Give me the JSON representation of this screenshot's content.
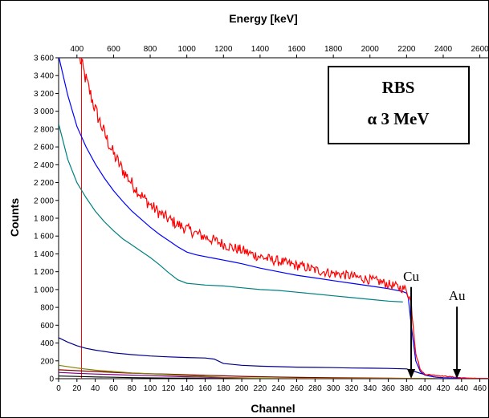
{
  "chart_data": {
    "type": "line",
    "title": "",
    "xlabel": "Channel",
    "ylabel": "Counts",
    "x2label": "Energy [keV]",
    "xlim": [
      0,
      470
    ],
    "ylim": [
      0,
      3600
    ],
    "x2lim": [
      300,
      2650
    ],
    "x_ticks": [
      0,
      20,
      40,
      60,
      80,
      100,
      120,
      140,
      160,
      180,
      200,
      220,
      240,
      260,
      280,
      300,
      320,
      340,
      360,
      380,
      400,
      420,
      440,
      460
    ],
    "y_ticks": [
      0,
      200,
      400,
      600,
      800,
      1000,
      1200,
      1400,
      1600,
      1800,
      2000,
      2200,
      2400,
      2600,
      2800,
      3000,
      3200,
      3400,
      3600
    ],
    "y_tick_labels": [
      "0",
      "200",
      "400",
      "600",
      "800",
      "1 000",
      "1 200",
      "1 400",
      "1 600",
      "1 800",
      "2 000",
      "2 200",
      "2 400",
      "2 600",
      "2 800",
      "3 000",
      "3 200",
      "3 400",
      "3 600"
    ],
    "x2_ticks": [
      400,
      600,
      800,
      1000,
      1200,
      1400,
      1600,
      1800,
      2000,
      2200,
      2400,
      2600
    ],
    "x2_tick_labels": [
      "400",
      "600",
      "800",
      "1000",
      "1200",
      "1400",
      "1600",
      "1800",
      "2000",
      "2200",
      "2400",
      "2600"
    ],
    "grid": false,
    "legend": "none",
    "box_text": [
      "RBS",
      "α 3 MeV"
    ],
    "annotations": [
      {
        "text": "Cu",
        "x": 385,
        "y": 1100,
        "arrow_to": [
          385,
          0
        ]
      },
      {
        "text": "Au",
        "x": 435,
        "y": 880,
        "arrow_to": [
          435,
          0
        ]
      }
    ],
    "marker_line": {
      "x": 25,
      "color": "#ff0000"
    },
    "series": [
      {
        "color": "#ff0000",
        "noisy": true,
        "x": [
          23,
          30,
          40,
          50,
          60,
          70,
          80,
          90,
          100,
          110,
          120,
          130,
          140,
          150,
          160,
          170,
          180,
          190,
          200,
          210,
          220,
          230,
          240,
          250,
          260,
          270,
          280,
          290,
          300,
          310,
          320,
          330,
          340,
          350,
          360,
          370,
          380,
          385,
          390,
          395,
          400,
          410,
          420,
          430,
          440,
          450,
          470
        ],
        "y": [
          3600,
          3350,
          3020,
          2750,
          2520,
          2340,
          2190,
          2060,
          1950,
          1860,
          1790,
          1730,
          1680,
          1630,
          1590,
          1550,
          1510,
          1470,
          1440,
          1400,
          1370,
          1340,
          1320,
          1290,
          1270,
          1250,
          1220,
          1200,
          1180,
          1170,
          1150,
          1130,
          1110,
          1090,
          1060,
          1030,
          1000,
          850,
          300,
          100,
          50,
          40,
          30,
          20,
          10,
          5,
          0
        ]
      },
      {
        "color": "#0000ff",
        "x": [
          0,
          10,
          20,
          30,
          40,
          50,
          60,
          70,
          80,
          90,
          100,
          110,
          120,
          130,
          140,
          150,
          160,
          170,
          180,
          190,
          200,
          220,
          240,
          260,
          280,
          300,
          320,
          340,
          360,
          375,
          380,
          382,
          385,
          390,
          395,
          400,
          410,
          420,
          440,
          470
        ],
        "y": [
          3620,
          3180,
          2830,
          2600,
          2410,
          2250,
          2110,
          1990,
          1880,
          1790,
          1700,
          1620,
          1550,
          1480,
          1420,
          1390,
          1370,
          1350,
          1330,
          1310,
          1290,
          1240,
          1200,
          1160,
          1130,
          1100,
          1070,
          1040,
          1010,
          980,
          960,
          900,
          600,
          200,
          80,
          40,
          20,
          10,
          5,
          0
        ]
      },
      {
        "color": "#008080",
        "x": [
          0,
          10,
          20,
          30,
          40,
          50,
          60,
          70,
          80,
          90,
          100,
          110,
          120,
          130,
          140,
          150,
          160,
          180,
          200,
          220,
          240,
          260,
          280,
          300,
          320,
          340,
          360,
          376
        ],
        "y": [
          2860,
          2460,
          2200,
          2030,
          1880,
          1760,
          1660,
          1570,
          1500,
          1430,
          1360,
          1280,
          1190,
          1110,
          1070,
          1060,
          1050,
          1040,
          1020,
          1000,
          990,
          970,
          950,
          930,
          910,
          890,
          870,
          860
        ]
      },
      {
        "color": "#00008b",
        "x": [
          0,
          10,
          20,
          30,
          40,
          60,
          80,
          100,
          120,
          140,
          160,
          170,
          180,
          200,
          220,
          240,
          260,
          280,
          300,
          320,
          340,
          360,
          380,
          395,
          410,
          420,
          440,
          470
        ],
        "y": [
          460,
          410,
          370,
          340,
          320,
          290,
          270,
          255,
          245,
          238,
          232,
          220,
          170,
          150,
          140,
          135,
          130,
          127,
          124,
          120,
          118,
          115,
          110,
          60,
          20,
          10,
          5,
          0
        ]
      },
      {
        "color": "#808000",
        "x": [
          0,
          20,
          40,
          60,
          80,
          100,
          120,
          140,
          160,
          180,
          200,
          220,
          240,
          260,
          280,
          300,
          470
        ],
        "y": [
          150,
          120,
          95,
          80,
          65,
          55,
          45,
          35,
          25,
          15,
          10,
          5,
          3,
          2,
          1,
          0,
          0
        ]
      },
      {
        "color": "#800000",
        "x": [
          0,
          20,
          40,
          60,
          80,
          100,
          120,
          140,
          160,
          180,
          200,
          240,
          300,
          360,
          380,
          420,
          470
        ],
        "y": [
          100,
          90,
          80,
          70,
          62,
          56,
          50,
          44,
          38,
          32,
          26,
          18,
          10,
          6,
          4,
          2,
          0
        ]
      },
      {
        "color": "#800080",
        "x": [
          0,
          20,
          40,
          60,
          80,
          100,
          120,
          140,
          160,
          180,
          200,
          240,
          300,
          470
        ],
        "y": [
          70,
          60,
          52,
          46,
          40,
          34,
          28,
          22,
          16,
          10,
          5,
          2,
          0,
          0
        ]
      },
      {
        "color": "#000000",
        "x": [
          0,
          20,
          40,
          60,
          80,
          100,
          120,
          140,
          160,
          180,
          200,
          240,
          300,
          470
        ],
        "y": [
          30,
          25,
          20,
          16,
          12,
          9,
          7,
          5,
          3,
          2,
          1,
          0,
          0,
          0
        ]
      }
    ]
  }
}
